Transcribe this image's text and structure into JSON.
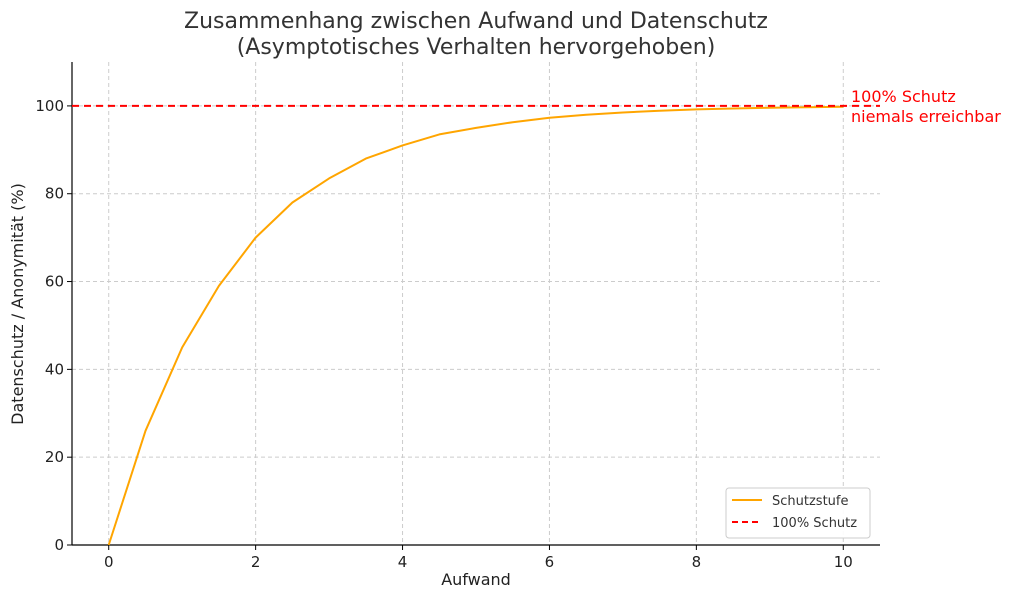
{
  "chart_data": {
    "type": "line",
    "title_lines": [
      "Zusammenhang zwischen Aufwand und Datenschutz",
      "(Asymptotisches Verhalten hervorgehoben)"
    ],
    "xlabel": "Aufwand",
    "ylabel": "Datenschutz / Anonymität (%)",
    "xlim": [
      -0.5,
      10.5
    ],
    "ylim": [
      0,
      110
    ],
    "x_ticks": [
      0,
      2,
      4,
      6,
      8,
      10
    ],
    "y_ticks": [
      0,
      20,
      40,
      60,
      80,
      100
    ],
    "x_tick_labels": [
      "0",
      "2",
      "4",
      "6",
      "8",
      "10"
    ],
    "y_tick_labels": [
      "0",
      "20",
      "40",
      "60",
      "80",
      "100"
    ],
    "grid": true,
    "legend_position": "lower-right",
    "series": [
      {
        "name": "Schutzstufe",
        "color": "#ffa500",
        "style": "solid",
        "x": [
          0,
          0.5,
          1,
          1.5,
          2,
          2.5,
          3,
          3.5,
          4,
          4.5,
          5,
          5.5,
          6,
          6.5,
          7,
          7.5,
          8,
          8.5,
          9,
          9.5,
          10
        ],
        "y": [
          0,
          26,
          45,
          59,
          70,
          78,
          83.5,
          88,
          91,
          93.5,
          95,
          96.3,
          97.3,
          98,
          98.5,
          98.9,
          99.2,
          99.4,
          99.6,
          99.7,
          99.8
        ]
      },
      {
        "name": "100% Schutz",
        "color": "#ff0000",
        "style": "dashed",
        "x": [
          -0.5,
          10.5
        ],
        "y": [
          100,
          100
        ]
      }
    ],
    "annotation": {
      "lines": [
        "100% Schutz",
        "niemals erreichbar"
      ],
      "color": "#ff0000"
    }
  }
}
